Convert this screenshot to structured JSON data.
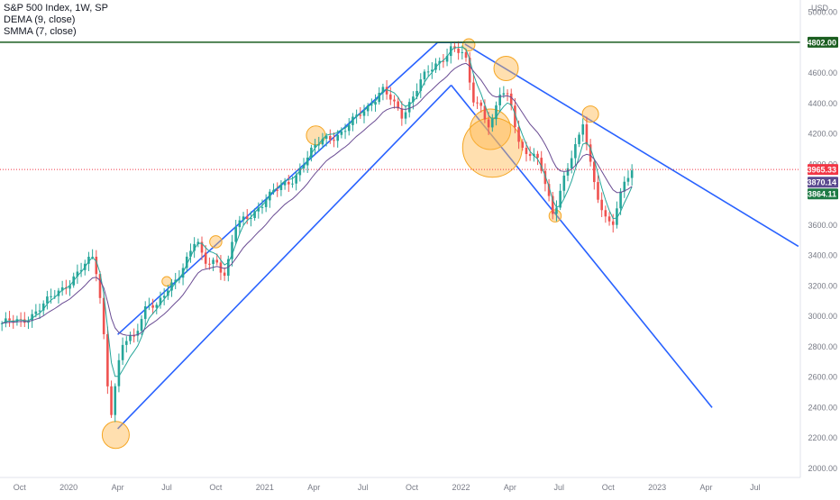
{
  "legend": {
    "symbol_line": "S&P 500 Index, 1W, SP",
    "dema_line": "DEMA (9, close)",
    "smma_line": "SMMA (7, close)"
  },
  "chart_data": {
    "type": "candlestick",
    "title": "S&P 500 Index, 1W, SP",
    "currency_label": "USD",
    "y_ticks": [
      2000,
      2200,
      2400,
      2600,
      2800,
      3000,
      3200,
      3400,
      3600,
      3800,
      4000,
      4200,
      4400,
      4600,
      5000
    ],
    "ylim": [
      1940,
      5080
    ],
    "x_ticks": [
      {
        "label": "Oct",
        "t": 2019.75
      },
      {
        "label": "2020",
        "t": 2020.0
      },
      {
        "label": "Apr",
        "t": 2020.25
      },
      {
        "label": "Jul",
        "t": 2020.5
      },
      {
        "label": "Oct",
        "t": 2020.75
      },
      {
        "label": "2021",
        "t": 2021.0
      },
      {
        "label": "Apr",
        "t": 2021.25
      },
      {
        "label": "Jul",
        "t": 2021.5
      },
      {
        "label": "Oct",
        "t": 2021.75
      },
      {
        "label": "2022",
        "t": 2022.0
      },
      {
        "label": "Apr",
        "t": 2022.25
      },
      {
        "label": "Jul",
        "t": 2022.5
      },
      {
        "label": "Oct",
        "t": 2022.75
      },
      {
        "label": "2023",
        "t": 2023.0
      },
      {
        "label": "Apr",
        "t": 2023.25
      },
      {
        "label": "Jul",
        "t": 2023.5
      }
    ],
    "xlim": [
      2019.65,
      2023.73
    ],
    "price_badges": [
      {
        "label": "4802.00",
        "value": 4802,
        "color": "#1b5e20"
      },
      {
        "label": "3965.33",
        "value": 3965.33,
        "color": "#f23645"
      },
      {
        "label": "3870.14",
        "value": 3870.14,
        "color": "#5b4a8f"
      },
      {
        "label": "3864.11",
        "value": 3864.11,
        "color": "#1e7a45"
      }
    ],
    "horizontal_line": {
      "value": 4802,
      "color": "#1b5e20"
    },
    "last_price_line": {
      "value": 3965.33,
      "color": "#f23645"
    },
    "series": [
      {
        "name": "S&P 500 Index",
        "kind": "candles",
        "anchors": [
          [
            2019.6,
            2950
          ],
          [
            2019.75,
            2960
          ],
          [
            2019.9,
            3100
          ],
          [
            2020.0,
            3230
          ],
          [
            2020.1,
            3350
          ],
          [
            2020.13,
            3390
          ],
          [
            2020.16,
            3130
          ],
          [
            2020.19,
            2750
          ],
          [
            2020.21,
            2320
          ],
          [
            2020.23,
            2470
          ],
          [
            2020.27,
            2800
          ],
          [
            2020.33,
            2860
          ],
          [
            2020.4,
            3100
          ],
          [
            2020.45,
            3050
          ],
          [
            2020.55,
            3260
          ],
          [
            2020.65,
            3500
          ],
          [
            2020.69,
            3340
          ],
          [
            2020.75,
            3380
          ],
          [
            2020.8,
            3270
          ],
          [
            2020.85,
            3580
          ],
          [
            2021.0,
            3760
          ],
          [
            2021.15,
            3920
          ],
          [
            2021.3,
            4180
          ],
          [
            2021.4,
            4200
          ],
          [
            2021.5,
            4360
          ],
          [
            2021.6,
            4480
          ],
          [
            2021.7,
            4330
          ],
          [
            2021.8,
            4550
          ],
          [
            2021.95,
            4770
          ],
          [
            2022.02,
            4700
          ],
          [
            2022.06,
            4430
          ],
          [
            2022.1,
            4400
          ],
          [
            2022.15,
            4230
          ],
          [
            2022.2,
            4460
          ],
          [
            2022.25,
            4430
          ],
          [
            2022.3,
            4130
          ],
          [
            2022.4,
            4000
          ],
          [
            2022.47,
            3680
          ],
          [
            2022.52,
            3900
          ],
          [
            2022.6,
            4150
          ],
          [
            2022.62,
            4280
          ],
          [
            2022.67,
            3950
          ],
          [
            2022.73,
            3640
          ],
          [
            2022.78,
            3590
          ],
          [
            2022.83,
            3900
          ],
          [
            2022.87,
            3965
          ]
        ]
      },
      {
        "name": "DEMA (9, close)",
        "color": "#26a69a",
        "kind": "line"
      },
      {
        "name": "SMMA (7, close)",
        "color": "#6a4c93",
        "kind": "line"
      }
    ],
    "trendlines": [
      {
        "from": [
          2020.25,
          2880
        ],
        "to": [
          2021.88,
          4800
        ],
        "color": "#2962ff"
      },
      {
        "from": [
          2020.25,
          2260
        ],
        "to": [
          2021.95,
          4520
        ],
        "color": "#2962ff"
      },
      {
        "from": [
          2021.88,
          4800
        ],
        "to": [
          2022.02,
          4800
        ],
        "color": "#2962ff"
      },
      {
        "from": [
          2022.02,
          4790
        ],
        "to": [
          2023.72,
          3460
        ],
        "color": "#2962ff"
      },
      {
        "from": [
          2021.95,
          4520
        ],
        "to": [
          2023.28,
          2400
        ],
        "color": "#2962ff"
      }
    ],
    "highlight_circles": [
      {
        "t": 2020.24,
        "v": 2220,
        "r": 1.0
      },
      {
        "t": 2020.5,
        "v": 3230,
        "r": 0.35
      },
      {
        "t": 2020.75,
        "v": 3490,
        "r": 0.45
      },
      {
        "t": 2021.26,
        "v": 4190,
        "r": 0.7
      },
      {
        "t": 2022.04,
        "v": 4785,
        "r": 0.45
      },
      {
        "t": 2022.23,
        "v": 4630,
        "r": 0.9
      },
      {
        "t": 2022.15,
        "v": 4230,
        "r": 1.5
      },
      {
        "t": 2022.16,
        "v": 4110,
        "r": 2.2
      },
      {
        "t": 2022.48,
        "v": 3660,
        "r": 0.45
      },
      {
        "t": 2022.66,
        "v": 4330,
        "r": 0.6
      }
    ],
    "grid": false
  }
}
